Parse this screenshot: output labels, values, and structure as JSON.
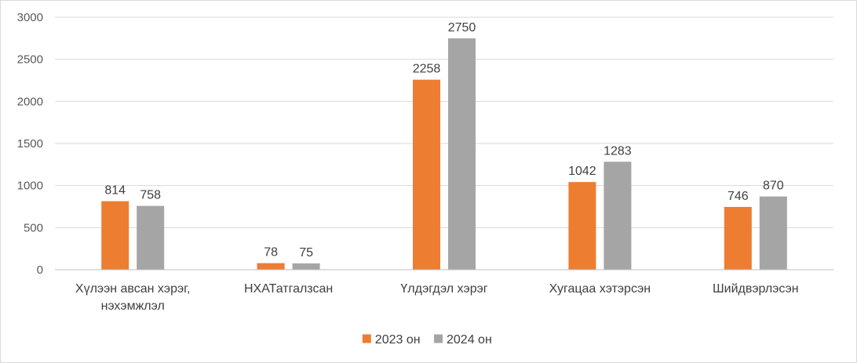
{
  "chart_data": {
    "type": "bar",
    "categories": [
      [
        "Хүлээн авсан хэрэг,",
        "нэхэмжлэл"
      ],
      [
        "НХАТатгалзсан"
      ],
      [
        "Үлдэгдэл хэрэг"
      ],
      [
        "Хугацаа хэтэрсэн"
      ],
      [
        "Шийдвэрлэсэн"
      ]
    ],
    "series": [
      {
        "name": "2023 он",
        "color": "#ed7d31",
        "values": [
          814,
          78,
          2258,
          1042,
          746
        ]
      },
      {
        "name": "2024 он",
        "color": "#a5a5a5",
        "values": [
          758,
          75,
          2750,
          1283,
          870
        ]
      }
    ],
    "ylim": [
      0,
      3000
    ],
    "yticks": [
      0,
      500,
      1000,
      1500,
      2000,
      2500,
      3000
    ],
    "grid": true,
    "legend": "bottom",
    "data_labels": true,
    "colors": {
      "gridline": "#d9d9d9",
      "axis": "#bfbfbf"
    }
  }
}
